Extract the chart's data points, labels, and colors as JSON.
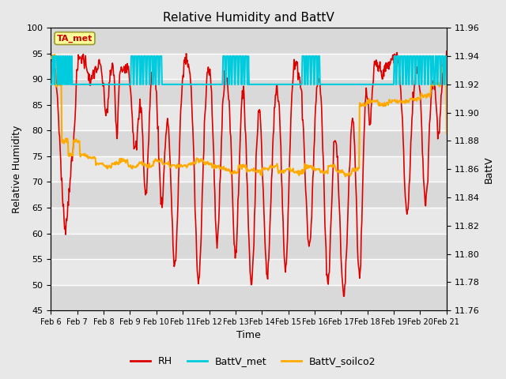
{
  "title": "Relative Humidity and BattV",
  "xlabel": "Time",
  "ylabel_left": "Relative Humidity",
  "ylabel_right": "BattV",
  "xlim": [
    0,
    15
  ],
  "ylim_left": [
    45,
    100
  ],
  "ylim_right": [
    11.76,
    11.96
  ],
  "xtick_labels": [
    "Feb 6",
    "Feb 7",
    "Feb 8",
    "Feb 9",
    "Feb 10",
    "Feb 11",
    "Feb 12",
    "Feb 13",
    "Feb 14",
    "Feb 15",
    "Feb 16",
    "Feb 17",
    "Feb 18",
    "Feb 19",
    "Feb 20",
    "Feb 21"
  ],
  "yticks_left": [
    45,
    50,
    55,
    60,
    65,
    70,
    75,
    80,
    85,
    90,
    95,
    100
  ],
  "yticks_right": [
    11.76,
    11.78,
    11.8,
    11.82,
    11.84,
    11.86,
    11.88,
    11.9,
    11.92,
    11.94,
    11.96
  ],
  "annotation_text": "TA_met",
  "annotation_box_color": "#ffff99",
  "annotation_border_color": "#999933",
  "annotation_text_color": "#cc0000",
  "bg_color": "#e8e8e8",
  "plot_bg_color": "#e8e8e8",
  "stripe_color": "#d0d0d0",
  "rh_color": "#dd0000",
  "battv_met_color": "#00ccdd",
  "battv_soilco2_color": "#ffaa00",
  "legend_labels": [
    "RH",
    "BattV_met",
    "BattV_soilco2"
  ],
  "rh_linewidth": 1.2,
  "battv_linewidth": 1.5,
  "title_fontsize": 11,
  "axis_fontsize": 9,
  "tick_fontsize": 8
}
